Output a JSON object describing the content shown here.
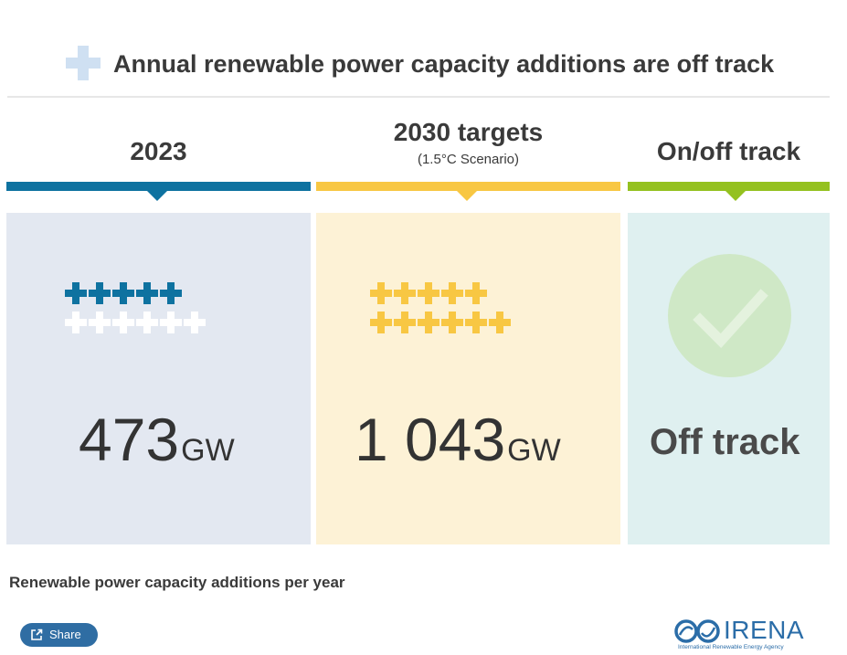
{
  "title": "Annual renewable power capacity additions are off track",
  "chart_data": {
    "type": "table",
    "title": "Annual renewable power capacity additions are off track",
    "caption": "Renewable power capacity additions per year",
    "columns": [
      {
        "key": "year_2023",
        "header": "2023",
        "subheader": "",
        "value": 473,
        "value_text": "473",
        "unit": "GW",
        "icon_filled": 5,
        "icon_total": 11
      },
      {
        "key": "target_2030",
        "header": "2030 targets",
        "subheader": "(1.5°C Scenario)",
        "value": 1043,
        "value_text": "1 043",
        "unit": "GW",
        "icon_filled": 11,
        "icon_total": 11
      },
      {
        "key": "status",
        "header": "On/off track",
        "subheader": "",
        "status": "Off track"
      }
    ]
  },
  "caption": "Renewable power capacity additions per year",
  "share": {
    "label": "Share"
  },
  "logo": {
    "name": "IRENA",
    "subtitle": "International Renewable Energy Agency"
  },
  "colors": {
    "year_2023": "#0e72a0",
    "year_2023_panel": "#e3e8f1",
    "target_2030": "#f8c743",
    "target_2030_panel": "#fdf2d6",
    "status": "#94c11f",
    "status_panel": "#dff0f0",
    "check_circle": "#cfe8c6",
    "cross_empty": "#ffffff",
    "title_plus": "#cfe0f2"
  }
}
